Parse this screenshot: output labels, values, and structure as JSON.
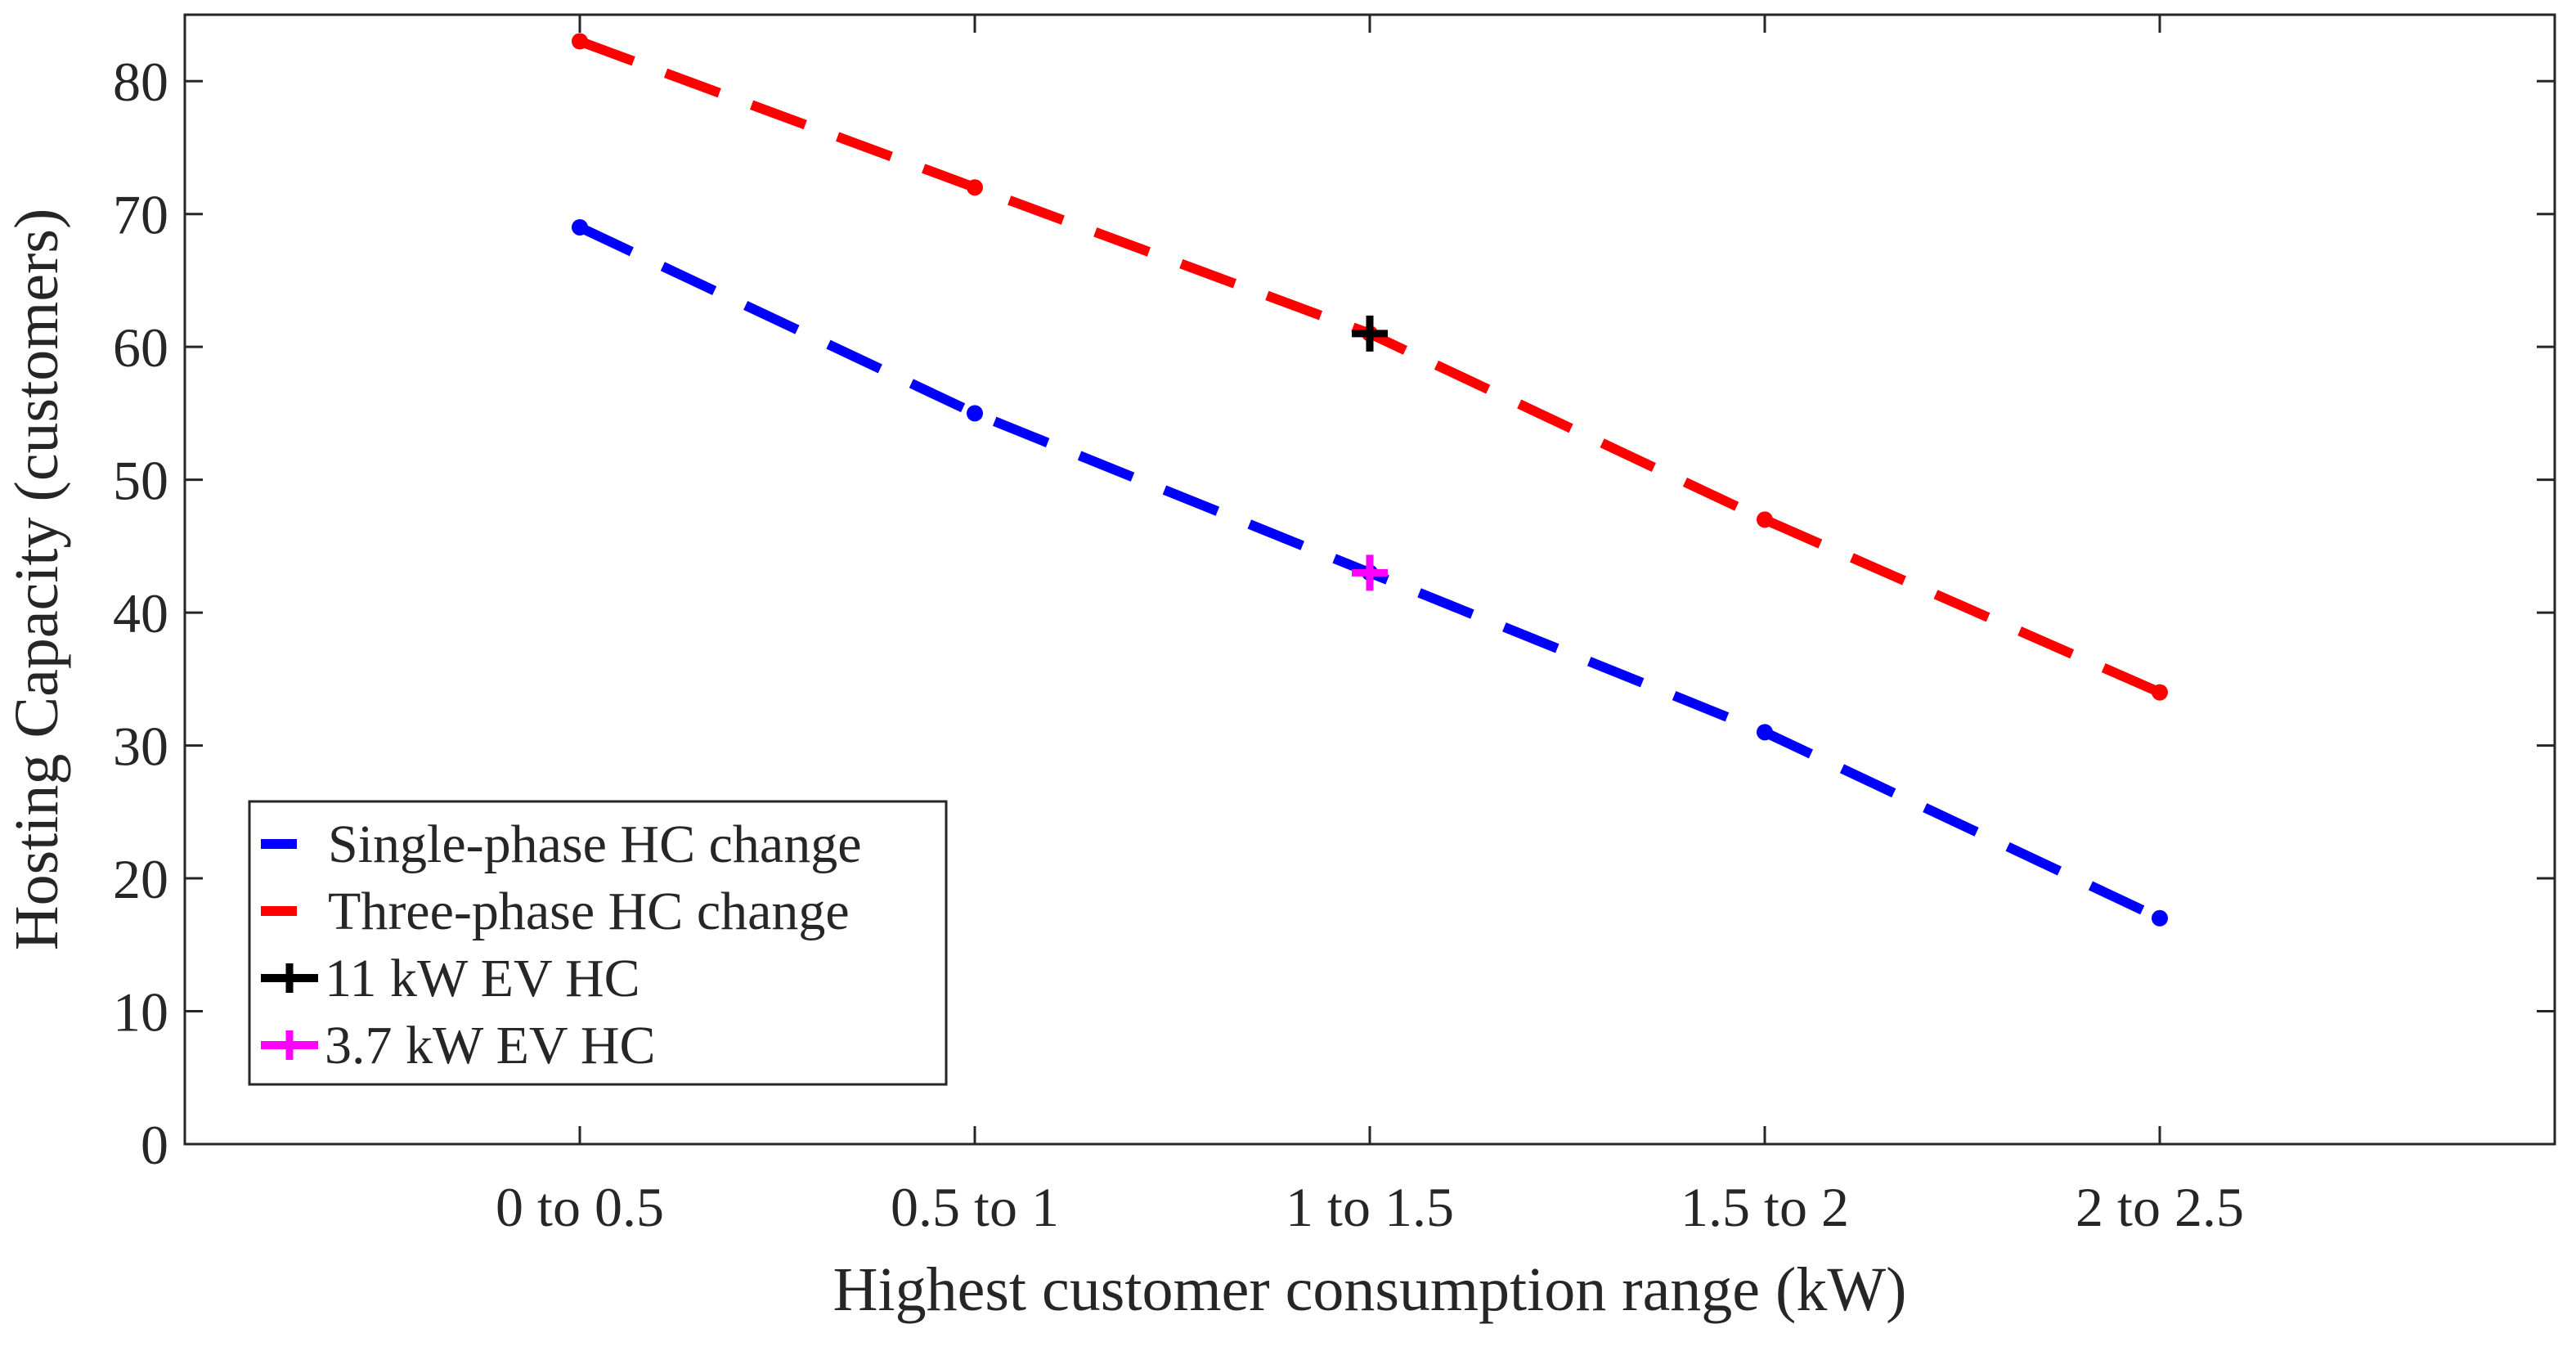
{
  "chart_data": {
    "type": "line",
    "title": "",
    "xlabel": "Highest customer consumption range (kW)",
    "ylabel": "Hosting Capacity (customers)",
    "categories": [
      "0 to 0.5",
      "0.5 to 1",
      "1 to 1.5",
      "1.5 to 2",
      "2 to 2.5"
    ],
    "xlim": [
      0,
      6
    ],
    "ylim": [
      0,
      85
    ],
    "yticks": [
      0,
      10,
      20,
      30,
      40,
      50,
      60,
      70,
      80
    ],
    "grid": false,
    "legend_position": "bottom-left",
    "series": [
      {
        "name": "Single-phase HC change",
        "style": "dashed",
        "color": "#0000ff",
        "x": [
          1,
          2,
          3,
          4,
          5
        ],
        "values": [
          69,
          55,
          43,
          31,
          17
        ]
      },
      {
        "name": "Three-phase HC change",
        "style": "dashed",
        "color": "#ff0000",
        "x": [
          1,
          2,
          3,
          4,
          5
        ],
        "values": [
          83,
          72,
          61,
          47,
          34
        ]
      }
    ],
    "markers": [
      {
        "name": "11 kW EV HC",
        "symbol": "plus",
        "color": "#000000",
        "x": 3,
        "y": 61
      },
      {
        "name": "3.7 kW EV HC",
        "symbol": "plus",
        "color": "#ff00ff",
        "x": 3,
        "y": 43
      }
    ]
  }
}
